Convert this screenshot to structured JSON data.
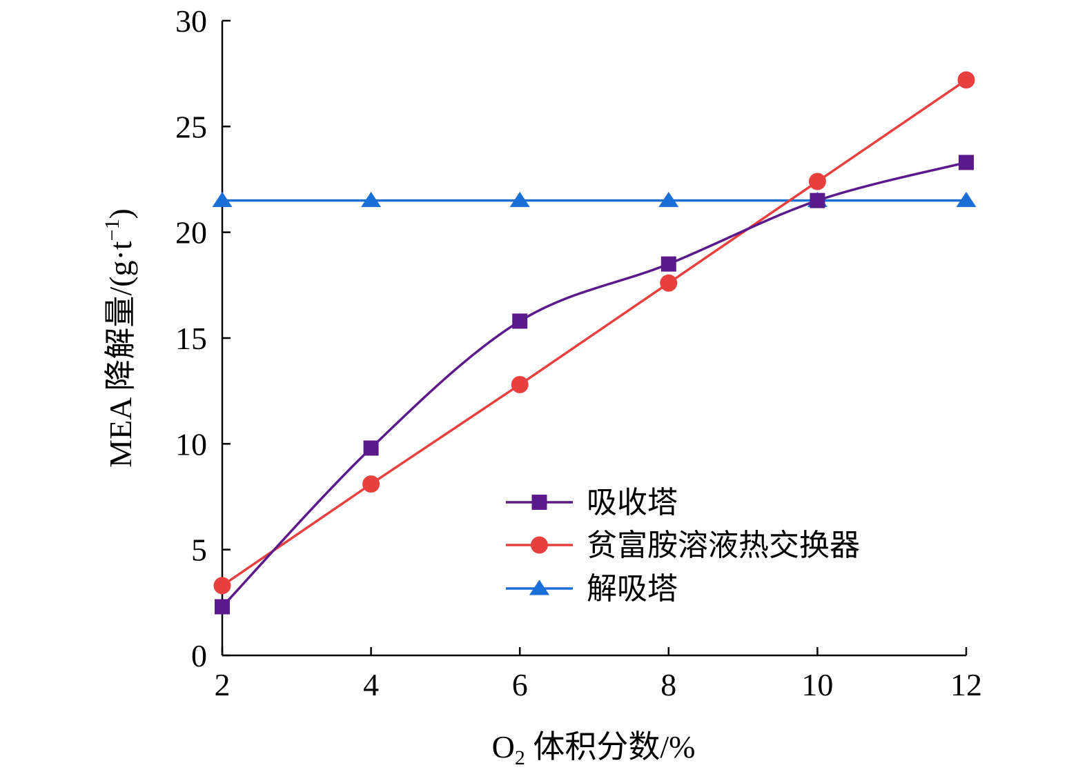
{
  "chart_data": {
    "type": "line",
    "title": "",
    "xlabel": {
      "prefix": "O",
      "sub": "2",
      "rest": " 体积分数/%"
    },
    "ylabel": {
      "main": "MEA 降解量/(g·t",
      "sup": "−1",
      "end": ")"
    },
    "x": [
      2,
      4,
      6,
      8,
      10,
      12
    ],
    "xlim": [
      2,
      12
    ],
    "ylim": [
      0,
      30
    ],
    "xticks": [
      "2",
      "4",
      "6",
      "8",
      "10",
      "12"
    ],
    "yticks": [
      "0",
      "5",
      "10",
      "15",
      "20",
      "25",
      "30"
    ],
    "grid": false,
    "legend_position": "bottom-right",
    "series": [
      {
        "name": "吸收塔",
        "values": [
          2.3,
          9.8,
          15.8,
          18.5,
          21.5,
          23.3
        ],
        "color": "#5b1a8c",
        "marker": "square",
        "smooth": true
      },
      {
        "name": "贫富胺溶液热交换器",
        "values": [
          3.3,
          8.1,
          12.8,
          17.6,
          22.4,
          27.2
        ],
        "color": "#e8403e",
        "marker": "circle",
        "smooth": false
      },
      {
        "name": "解吸塔",
        "values": [
          21.5,
          21.5,
          21.5,
          21.5,
          21.5,
          21.5
        ],
        "color": "#1a6fd6",
        "marker": "triangle",
        "smooth": false
      }
    ]
  }
}
